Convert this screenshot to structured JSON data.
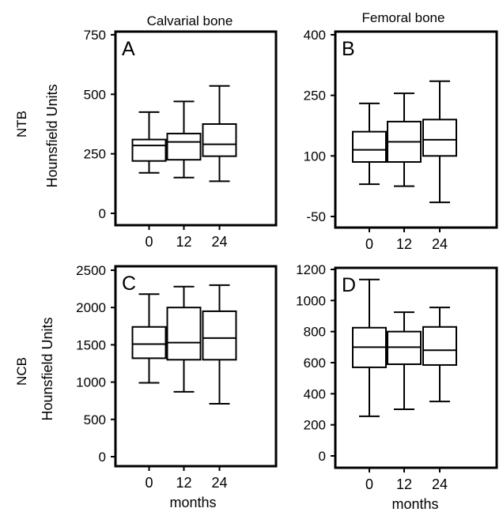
{
  "figure": {
    "columns": [
      "Calvarial bone",
      "Femoral bone"
    ],
    "rows": [
      "NTB",
      "NCB"
    ],
    "ylabel": "Hounsfield Units",
    "xlabel": "months"
  },
  "chart_data": [
    {
      "type": "boxplot",
      "panel": "A",
      "row": "NTB",
      "column": "Calvarial bone",
      "categories": [
        "0",
        "12",
        "24"
      ],
      "ylim": [
        0,
        750
      ],
      "yticks": [
        0,
        250,
        500,
        750
      ],
      "ytick_labels": [
        "0",
        "250",
        "500",
        "750"
      ],
      "ylabel": "Hounsfield Units",
      "xlabel": "",
      "show_ylabel": true,
      "boxes": [
        {
          "min": 170,
          "q1": 220,
          "median": 285,
          "q3": 310,
          "max": 425
        },
        {
          "min": 150,
          "q1": 225,
          "median": 300,
          "q3": 335,
          "max": 470
        },
        {
          "min": 135,
          "q1": 240,
          "median": 290,
          "q3": 375,
          "max": 535
        }
      ]
    },
    {
      "type": "boxplot",
      "panel": "B",
      "row": "NTB",
      "column": "Femoral bone",
      "categories": [
        "0",
        "12",
        "24"
      ],
      "ylim": [
        -70,
        400
      ],
      "yticks": [
        -50,
        100,
        250,
        400
      ],
      "ytick_labels": [
        "-50",
        "100",
        "250",
        "400"
      ],
      "ylabel": "",
      "xlabel": "",
      "show_ylabel": false,
      "boxes": [
        {
          "min": 30,
          "q1": 85,
          "median": 115,
          "q3": 160,
          "max": 230
        },
        {
          "min": 25,
          "q1": 85,
          "median": 135,
          "q3": 185,
          "max": 255
        },
        {
          "min": -15,
          "q1": 100,
          "median": 140,
          "q3": 190,
          "max": 285
        }
      ]
    },
    {
      "type": "boxplot",
      "panel": "C",
      "row": "NCB",
      "column": "Calvarial bone",
      "categories": [
        "0",
        "12",
        "24"
      ],
      "ylim": [
        0,
        2500
      ],
      "yticks": [
        0,
        500,
        1000,
        1500,
        2000,
        2500
      ],
      "ytick_labels": [
        "0",
        "500",
        "1000",
        "1500",
        "2000",
        "2500"
      ],
      "ylabel": "Hounsfield Units",
      "xlabel": "months",
      "show_ylabel": true,
      "boxes": [
        {
          "min": 990,
          "q1": 1320,
          "median": 1510,
          "q3": 1740,
          "max": 2180
        },
        {
          "min": 870,
          "q1": 1300,
          "median": 1530,
          "q3": 2000,
          "max": 2280
        },
        {
          "min": 710,
          "q1": 1300,
          "median": 1590,
          "q3": 1950,
          "max": 2300
        }
      ]
    },
    {
      "type": "boxplot",
      "panel": "D",
      "row": "NCB",
      "column": "Femoral bone",
      "categories": [
        "0",
        "12",
        "24"
      ],
      "ylim": [
        0,
        1200
      ],
      "yticks": [
        0,
        200,
        400,
        600,
        800,
        1000,
        1200
      ],
      "ytick_labels": [
        "0",
        "200",
        "400",
        "600",
        "800",
        "1000",
        "1200"
      ],
      "ylabel": "",
      "xlabel": "months",
      "show_ylabel": false,
      "boxes": [
        {
          "min": 255,
          "q1": 570,
          "median": 700,
          "q3": 825,
          "max": 1135
        },
        {
          "min": 300,
          "q1": 590,
          "median": 700,
          "q3": 800,
          "max": 925
        },
        {
          "min": 350,
          "q1": 585,
          "median": 680,
          "q3": 830,
          "max": 955
        }
      ]
    }
  ]
}
